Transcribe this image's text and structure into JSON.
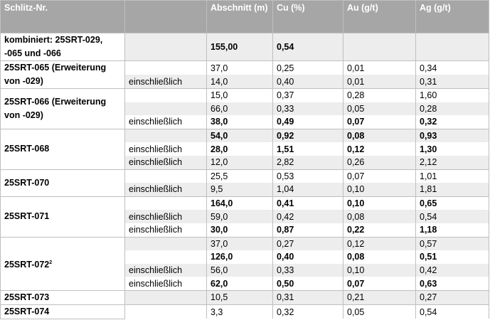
{
  "header": {
    "columns": [
      "Schlitz-Nr.",
      "Abschnitt (m)",
      "Cu (%)",
      "Au (g/t)",
      "Ag (g/t)"
    ]
  },
  "groups": [
    {
      "label": "kombiniert: 25SRT-029, -065 und -066",
      "rows": [
        {
          "abschnitt": "155,00",
          "cu": "0,54",
          "bold": true
        }
      ]
    },
    {
      "label": "25SRT-065 (Erweiterung von -029)",
      "rows": [
        {
          "abschnitt": "37,0",
          "cu": "0,25",
          "au": "0,01",
          "ag": "0,34"
        },
        {
          "qualifier": "einschließlich",
          "abschnitt": "14,0",
          "cu": "0,40",
          "au": "0,01",
          "ag": "0,31"
        }
      ]
    },
    {
      "label": "25SRT-066 (Erweiterung von -029)",
      "rows": [
        {
          "abschnitt": "15,0",
          "cu": "0,37",
          "au": "0,28",
          "ag": "1,60"
        },
        {
          "abschnitt": "66,0",
          "cu": "0,33",
          "au": "0,05",
          "ag": "0,28"
        },
        {
          "qualifier": "einschließlich",
          "abschnitt": "38,0",
          "cu": "0,49",
          "au": "0,07",
          "ag": "0,32",
          "bold": true
        }
      ]
    },
    {
      "label": "25SRT-068",
      "rows": [
        {
          "abschnitt": "54,0",
          "cu": "0,92",
          "au": "0,08",
          "ag": "0,93",
          "bold": true
        },
        {
          "qualifier": "einschließlich",
          "abschnitt": "28,0",
          "cu": "1,51",
          "au": "0,12",
          "ag": "1,30",
          "bold": true
        },
        {
          "qualifier": "einschließlich",
          "abschnitt": "12,0",
          "cu": "2,82",
          "au": "0,26",
          "ag": "2,12"
        }
      ]
    },
    {
      "label": "25SRT-070",
      "rows": [
        {
          "abschnitt": "25,5",
          "cu": "0,53",
          "au": "0,07",
          "ag": "1,01"
        },
        {
          "qualifier": "einschließlich",
          "abschnitt": "9,5",
          "cu": "1,04",
          "au": "0,10",
          "ag": "1,81"
        }
      ]
    },
    {
      "label": "25SRT-071",
      "rows": [
        {
          "abschnitt": "164,0",
          "cu": "0,41",
          "au": "0,10",
          "ag": "0,65",
          "bold": true
        },
        {
          "qualifier": "einschließlich",
          "abschnitt": "59,0",
          "cu": "0,42",
          "au": "0,08",
          "ag": "0,54"
        },
        {
          "qualifier": "einschließlich",
          "abschnitt": "30,0",
          "cu": "0,87",
          "au": "0,22",
          "ag": "1,18",
          "bold": true
        }
      ]
    },
    {
      "label": "25SRT-072",
      "footnote": "2",
      "rows": [
        {
          "abschnitt": "37,0",
          "cu": "0,27",
          "au": "0,12",
          "ag": "0,57"
        },
        {
          "abschnitt": "126,0",
          "cu": "0,40",
          "au": "0,08",
          "ag": "0,51",
          "bold": true
        },
        {
          "qualifier": "einschließlich",
          "abschnitt": "56,0",
          "cu": "0,33",
          "au": "0,10",
          "ag": "0,42"
        },
        {
          "qualifier": "einschließlich",
          "abschnitt": "62,0",
          "cu": "0,50",
          "au": "0,07",
          "ag": "0,63",
          "bold": true
        }
      ]
    },
    {
      "label": "25SRT-073",
      "rows": [
        {
          "abschnitt": "10,5",
          "cu": "0,31",
          "au": "0,21",
          "ag": "0,27"
        }
      ]
    },
    {
      "label": "25SRT-074",
      "rows": [
        {
          "abschnitt": "3,3",
          "cu": "0,32",
          "au": "0,05",
          "ag": "0,54"
        }
      ]
    }
  ]
}
